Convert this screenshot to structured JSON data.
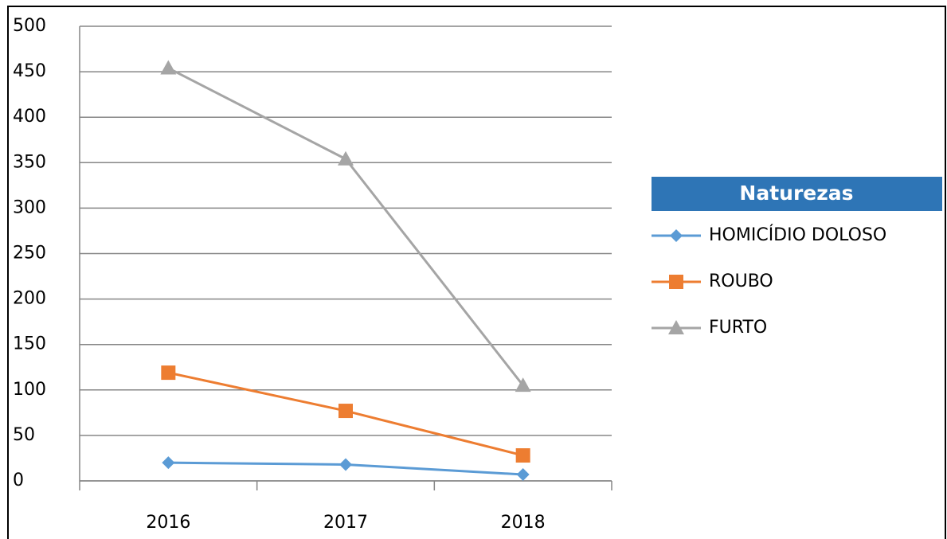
{
  "chart_data": {
    "type": "line",
    "categories": [
      "2016",
      "2017",
      "2018"
    ],
    "series": [
      {
        "name": "HOMICÍDIO DOLOSO",
        "color": "#5b9bd5",
        "marker": "diamond",
        "values": [
          20,
          18,
          7
        ]
      },
      {
        "name": "ROUBO",
        "color": "#ed7d31",
        "marker": "square",
        "values": [
          119,
          77,
          28
        ]
      },
      {
        "name": "FURTO",
        "color": "#a5a5a5",
        "marker": "triangle",
        "values": [
          454,
          354,
          105
        ]
      }
    ],
    "ylim": [
      0,
      500
    ],
    "yticks": [
      0,
      50,
      100,
      150,
      200,
      250,
      300,
      350,
      400,
      450,
      500
    ],
    "grid": true,
    "legend_title": "Naturezas",
    "legend_position": "right"
  }
}
